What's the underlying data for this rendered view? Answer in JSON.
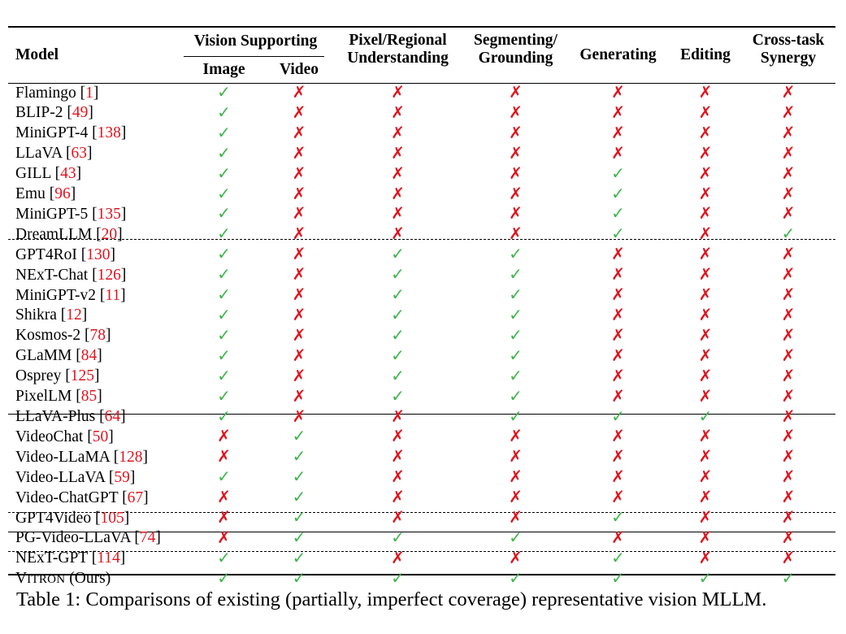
{
  "table": {
    "headers": {
      "model": "Model",
      "vision_supporting": "Vision Supporting",
      "image": "Image",
      "video": "Video",
      "pixel_regional_line1": "Pixel/Regional",
      "pixel_regional_line2": "Understanding",
      "segmenting_line1": "Segmenting/",
      "segmenting_line2": "Grounding",
      "generating": "Generating",
      "editing": "Editing",
      "cross_task_line1": "Cross-task",
      "cross_task_line2": "Synergy"
    },
    "symbols": {
      "yes": "✓",
      "no": "✗",
      "yes_color": "#3eb54c",
      "no_color": "#e0141e"
    },
    "rows": [
      {
        "name": "Flamingo",
        "ref": "1",
        "vals": [
          1,
          0,
          0,
          0,
          0,
          0,
          0
        ]
      },
      {
        "name": "BLIP-2",
        "ref": "49",
        "vals": [
          1,
          0,
          0,
          0,
          0,
          0,
          0
        ]
      },
      {
        "name": "MiniGPT-4",
        "ref": "138",
        "vals": [
          1,
          0,
          0,
          0,
          0,
          0,
          0
        ]
      },
      {
        "name": "LLaVA",
        "ref": "63",
        "vals": [
          1,
          0,
          0,
          0,
          0,
          0,
          0
        ]
      },
      {
        "name": "GILL",
        "ref": "43",
        "vals": [
          1,
          0,
          0,
          0,
          1,
          0,
          0
        ]
      },
      {
        "name": "Emu",
        "ref": "96",
        "vals": [
          1,
          0,
          0,
          0,
          1,
          0,
          0
        ]
      },
      {
        "name": "MiniGPT-5",
        "ref": "135",
        "vals": [
          1,
          0,
          0,
          0,
          1,
          0,
          0
        ]
      },
      {
        "name": "DreamLLM",
        "ref": "20",
        "vals": [
          1,
          0,
          0,
          0,
          1,
          0,
          1
        ]
      },
      {
        "name": "GPT4RoI",
        "ref": "130",
        "vals": [
          1,
          0,
          1,
          1,
          0,
          0,
          0
        ]
      },
      {
        "name": "NExT-Chat",
        "ref": "126",
        "vals": [
          1,
          0,
          1,
          1,
          0,
          0,
          0
        ]
      },
      {
        "name": "MiniGPT-v2",
        "ref": "11",
        "vals": [
          1,
          0,
          1,
          1,
          0,
          0,
          0
        ]
      },
      {
        "name": "Shikra",
        "ref": "12",
        "vals": [
          1,
          0,
          1,
          1,
          0,
          0,
          0
        ]
      },
      {
        "name": "Kosmos-2",
        "ref": "78",
        "vals": [
          1,
          0,
          1,
          1,
          0,
          0,
          0
        ]
      },
      {
        "name": "GLaMM",
        "ref": "84",
        "vals": [
          1,
          0,
          1,
          1,
          0,
          0,
          0
        ]
      },
      {
        "name": "Osprey",
        "ref": "125",
        "vals": [
          1,
          0,
          1,
          1,
          0,
          0,
          0
        ]
      },
      {
        "name": "PixelLM",
        "ref": "85",
        "vals": [
          1,
          0,
          1,
          1,
          0,
          0,
          0
        ]
      },
      {
        "name": "LLaVA-Plus",
        "ref": "64",
        "vals": [
          1,
          0,
          0,
          1,
          1,
          1,
          0
        ]
      },
      {
        "name": "VideoChat",
        "ref": "50",
        "vals": [
          0,
          1,
          0,
          0,
          0,
          0,
          0
        ]
      },
      {
        "name": "Video-LLaMA",
        "ref": "128",
        "vals": [
          0,
          1,
          0,
          0,
          0,
          0,
          0
        ]
      },
      {
        "name": "Video-LLaVA",
        "ref": "59",
        "vals": [
          1,
          1,
          0,
          0,
          0,
          0,
          0
        ]
      },
      {
        "name": "Video-ChatGPT",
        "ref": "67",
        "vals": [
          0,
          1,
          0,
          0,
          0,
          0,
          0
        ]
      },
      {
        "name": "GPT4Video",
        "ref": "105",
        "vals": [
          0,
          1,
          0,
          0,
          1,
          0,
          0
        ]
      },
      {
        "name": "PG-Video-LLaVA",
        "ref": "74",
        "vals": [
          0,
          1,
          1,
          1,
          0,
          0,
          0
        ]
      },
      {
        "name": "NExT-GPT",
        "ref": "114",
        "vals": [
          1,
          1,
          0,
          0,
          1,
          0,
          0
        ]
      },
      {
        "name": "VITRON (Ours)",
        "ref": "",
        "sc_first": "V",
        "sc_rest": "ITRON",
        "suffix": " (Ours)",
        "vals": [
          1,
          1,
          1,
          1,
          1,
          1,
          1
        ]
      }
    ]
  },
  "caption": "Table 1: Comparisons of existing (partially, imperfect coverage) representative vision MLLM."
}
